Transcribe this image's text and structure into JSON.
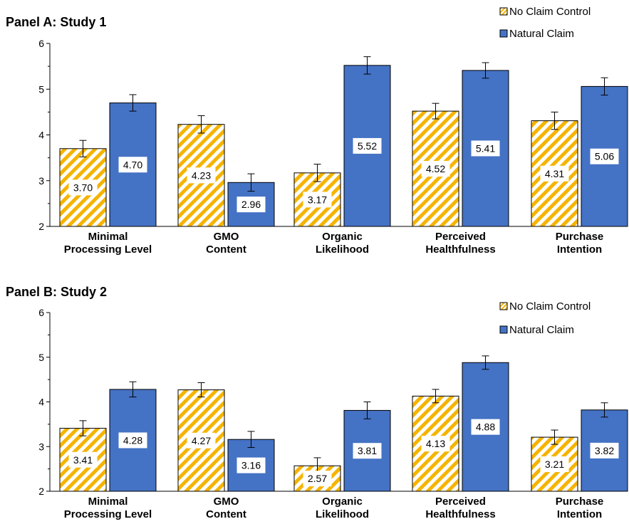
{
  "chart_data": [
    {
      "type": "bar",
      "title": "Panel A: Study 1",
      "categories": [
        [
          "Minimal",
          "Processing Level"
        ],
        [
          "GMO",
          "Content"
        ],
        [
          "Organic",
          "Likelihood"
        ],
        [
          "Perceived",
          "Healthfulness"
        ],
        [
          "Purchase",
          "Intention"
        ]
      ],
      "ylim": [
        2,
        6
      ],
      "yticks": [
        2,
        3,
        4,
        5,
        6
      ],
      "legend_position": "top-right",
      "series": [
        {
          "name": "No Claim Control",
          "values": [
            3.7,
            4.23,
            3.17,
            4.52,
            4.31
          ],
          "labels": [
            "3.70",
            "4.23",
            "3.17",
            "4.52",
            "4.31"
          ],
          "errors": [
            0.18,
            0.19,
            0.19,
            0.17,
            0.19
          ],
          "color": "#f5b400",
          "pattern": "hatch"
        },
        {
          "name": "Natural Claim",
          "values": [
            4.7,
            2.96,
            5.52,
            5.41,
            5.06
          ],
          "labels": [
            "4.70",
            "2.96",
            "5.52",
            "5.41",
            "5.06"
          ],
          "errors": [
            0.18,
            0.19,
            0.19,
            0.17,
            0.19
          ],
          "color": "#4472c4",
          "pattern": "solid"
        }
      ]
    },
    {
      "type": "bar",
      "title": "Panel B: Study 2",
      "categories": [
        [
          "Minimal",
          "Processing Level"
        ],
        [
          "GMO",
          "Content"
        ],
        [
          "Organic",
          "Likelihood"
        ],
        [
          "Perceived",
          "Healthfulness"
        ],
        [
          "Purchase",
          "Intention"
        ]
      ],
      "ylim": [
        2,
        6
      ],
      "yticks": [
        2,
        3,
        4,
        5,
        6
      ],
      "legend_position": "top-right",
      "series": [
        {
          "name": "No Claim Control",
          "values": [
            3.41,
            4.27,
            2.57,
            4.13,
            3.21
          ],
          "labels": [
            "3.41",
            "4.27",
            "2.57",
            "4.13",
            "3.21"
          ],
          "errors": [
            0.17,
            0.16,
            0.18,
            0.15,
            0.16
          ],
          "color": "#f5b400",
          "pattern": "hatch"
        },
        {
          "name": "Natural Claim",
          "values": [
            4.28,
            3.16,
            3.81,
            4.88,
            3.82
          ],
          "labels": [
            "4.28",
            "3.16",
            "3.81",
            "4.88",
            "3.82"
          ],
          "errors": [
            0.17,
            0.18,
            0.19,
            0.15,
            0.16
          ],
          "color": "#4472c4",
          "pattern": "solid"
        }
      ]
    }
  ]
}
